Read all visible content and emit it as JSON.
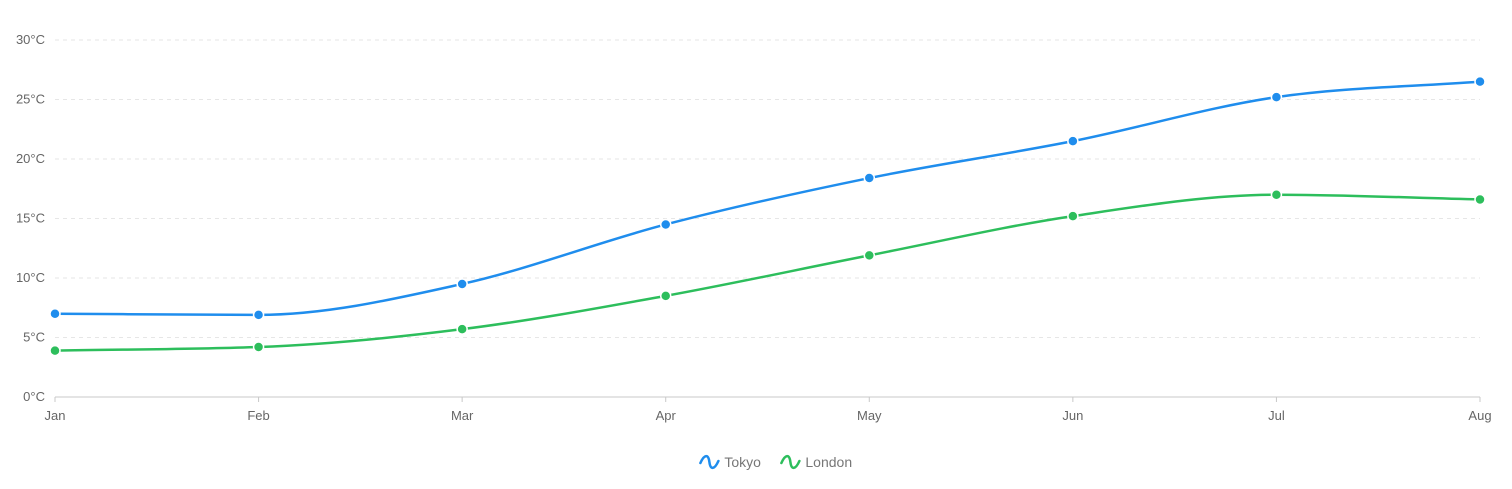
{
  "chart_data": {
    "type": "line",
    "categories": [
      "Jan",
      "Feb",
      "Mar",
      "Apr",
      "May",
      "Jun",
      "Jul",
      "Aug"
    ],
    "y_ticks": [
      "0°C",
      "5°C",
      "10°C",
      "15°C",
      "20°C",
      "25°C",
      "30°C"
    ],
    "ylim": [
      0,
      30
    ],
    "grid": true,
    "grid_style": "dashed-horizontal",
    "legend_position": "bottom-center",
    "series": [
      {
        "name": "Tokyo",
        "color": "#1f8ded",
        "values": [
          7.0,
          6.9,
          9.5,
          14.5,
          18.4,
          21.5,
          25.2,
          26.5
        ]
      },
      {
        "name": "London",
        "color": "#2dbe5c",
        "values": [
          3.9,
          4.2,
          5.7,
          8.5,
          11.9,
          15.2,
          17.0,
          16.6
        ]
      }
    ]
  }
}
